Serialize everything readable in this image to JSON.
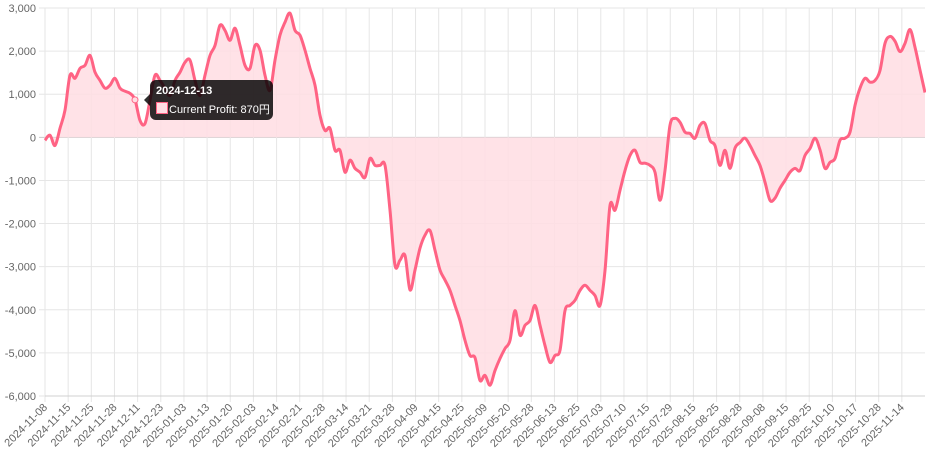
{
  "chart_data": {
    "type": "area",
    "title": "",
    "xlabel": "",
    "ylabel": "",
    "ylim": [
      -6000,
      3000
    ],
    "grid": true,
    "y_ticks": [
      "3,000",
      "2,000",
      "1,000",
      "0",
      "-1,000",
      "-2,000",
      "-3,000",
      "-4,000",
      "-5,000",
      "-6,000"
    ],
    "y_tick_values": [
      3000,
      2000,
      1000,
      0,
      -1000,
      -2000,
      -3000,
      -4000,
      -5000,
      -6000
    ],
    "x_tick_labels": [
      "2024-11-08",
      "2024-11-15",
      "2024-11-25",
      "2024-11-28",
      "2024-12-11",
      "2024-12-23",
      "2025-01-03",
      "2025-01-13",
      "2025-01-20",
      "2025-02-03",
      "2025-02-14",
      "2025-02-21",
      "2025-02-28",
      "2025-03-14",
      "2025-03-21",
      "2025-03-28",
      "2025-04-09",
      "2025-04-15",
      "2025-04-25",
      "2025-05-09",
      "2025-05-20",
      "2025-05-28",
      "2025-06-13",
      "2025-06-25",
      "2025-07-03",
      "2025-07-10",
      "2025-07-15",
      "2025-07-29",
      "2025-08-15",
      "2025-08-25",
      "2025-08-28",
      "2025-09-08",
      "2025-09-15",
      "2025-09-25",
      "2025-10-10",
      "2025-10-17",
      "2025-10-28",
      "2025-11-14"
    ],
    "series": [
      {
        "name": "Current Profit",
        "color": "#ff6384",
        "fill": "#ffdde3",
        "values": [
          -70,
          50,
          -190,
          210,
          630,
          1440,
          1370,
          1600,
          1670,
          1900,
          1510,
          1320,
          1140,
          1210,
          1370,
          1140,
          1070,
          1020,
          870,
          390,
          320,
          860,
          1440,
          1320,
          1140,
          970,
          1320,
          1510,
          1740,
          1790,
          1320,
          970,
          1440,
          1900,
          2130,
          2600,
          2480,
          2250,
          2530,
          2130,
          1670,
          1600,
          2130,
          2020,
          1440,
          1090,
          1790,
          2370,
          2670,
          2880,
          2480,
          2370,
          2020,
          1600,
          1210,
          510,
          160,
          210,
          -300,
          -300,
          -810,
          -530,
          -720,
          -810,
          -930,
          -490,
          -650,
          -650,
          -650,
          -1690,
          -2970,
          -2850,
          -2740,
          -3540,
          -3080,
          -2570,
          -2270,
          -2160,
          -2620,
          -3080,
          -3310,
          -3550,
          -3900,
          -4250,
          -4710,
          -5060,
          -5110,
          -5640,
          -5520,
          -5750,
          -5410,
          -5130,
          -4900,
          -4710,
          -4020,
          -4590,
          -4360,
          -4250,
          -3900,
          -4360,
          -4830,
          -5220,
          -5060,
          -4940,
          -4020,
          -3900,
          -3780,
          -3550,
          -3430,
          -3550,
          -3670,
          -3900,
          -3090,
          -1580,
          -1690,
          -1230,
          -770,
          -420,
          -300,
          -580,
          -600,
          -650,
          -810,
          -1460,
          -770,
          280,
          440,
          350,
          120,
          90,
          -20,
          280,
          320,
          -70,
          -190,
          -650,
          -300,
          -720,
          -250,
          -120,
          -20,
          -190,
          -420,
          -650,
          -1040,
          -1460,
          -1410,
          -1180,
          -1000,
          -810,
          -720,
          -770,
          -420,
          -260,
          -20,
          -290,
          -720,
          -580,
          -490,
          -70,
          -20,
          120,
          740,
          1140,
          1370,
          1280,
          1320,
          1550,
          2180,
          2340,
          2230,
          1990,
          2180,
          2500,
          2090,
          1560,
          1040
        ]
      }
    ],
    "tooltip": {
      "title": "2024-12-13",
      "label": "Current Profit: 870円",
      "value": 870,
      "point_index": 18
    }
  }
}
